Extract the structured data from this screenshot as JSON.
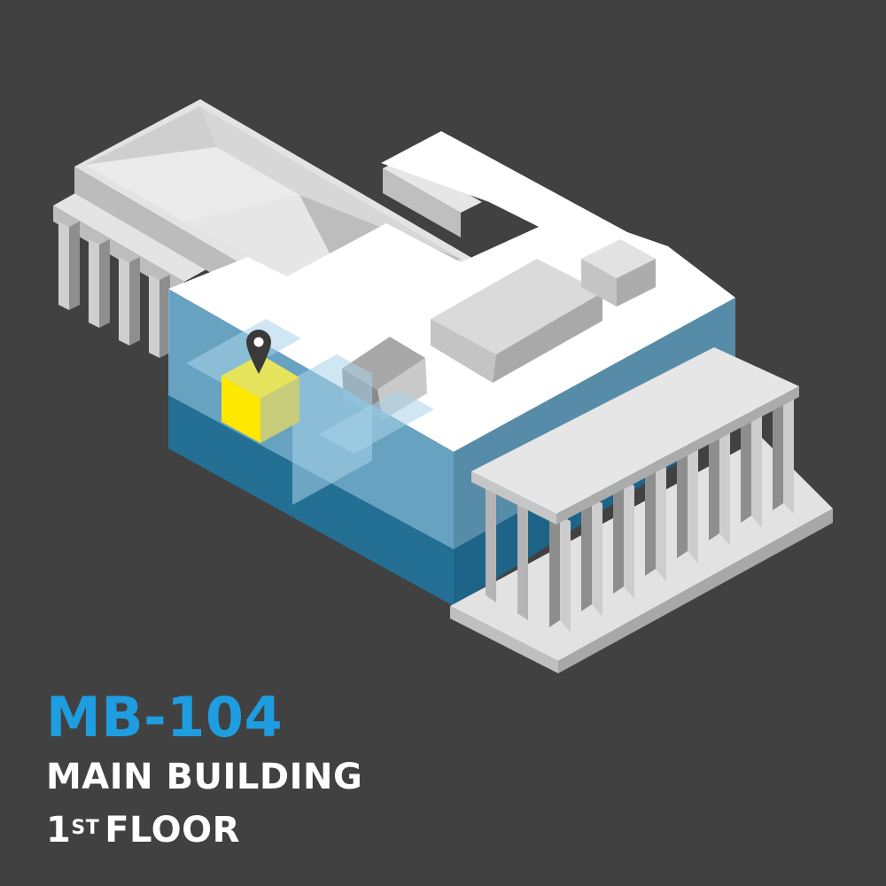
{
  "room": {
    "code": "MB-104",
    "building": "MAIN BUILDING",
    "floor_number": "1",
    "floor_suffix": "ST",
    "floor_word": "FLOOR"
  },
  "colors": {
    "background": "#414141",
    "accent": "#1e9de0",
    "building_roof": "#ffffff",
    "building_light": "#e3e3e3",
    "building_mid": "#c6c6c6",
    "building_dark": "#8e8e8e",
    "floor_glass": "#6fb4d8",
    "floor_base": "#2b7599",
    "highlight_room": "#ffe800",
    "pin": "#3a3a3a"
  },
  "icons": {
    "marker": "location-pin-icon"
  }
}
